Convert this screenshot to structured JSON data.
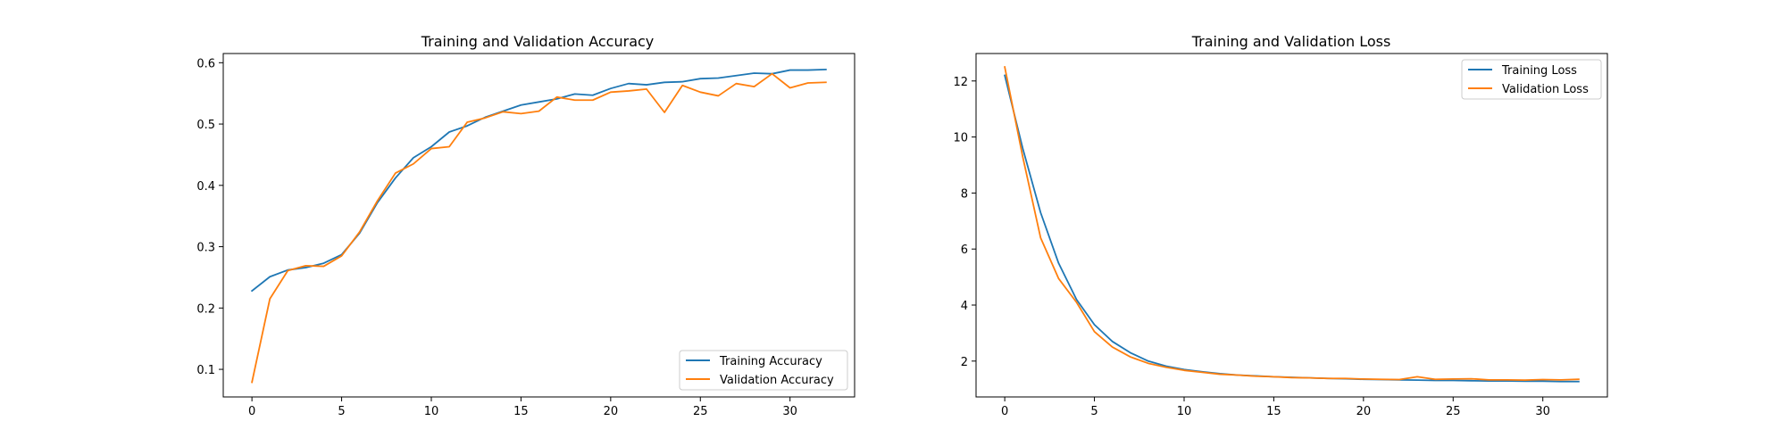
{
  "chart_data": [
    {
      "type": "line",
      "title": "Training and Validation Accuracy",
      "xlabel": "",
      "ylabel": "",
      "xlim": [
        -1.6,
        33.6
      ],
      "ylim": [
        0.055,
        0.615
      ],
      "xticks": [
        0,
        5,
        10,
        15,
        20,
        25,
        30
      ],
      "yticks": [
        0.1,
        0.2,
        0.3,
        0.4,
        0.5,
        0.6
      ],
      "grid": false,
      "legend_position": "lower right",
      "x": [
        0,
        1,
        2,
        3,
        4,
        5,
        6,
        7,
        8,
        9,
        10,
        11,
        12,
        13,
        14,
        15,
        16,
        17,
        18,
        19,
        20,
        21,
        22,
        23,
        24,
        25,
        26,
        27,
        28,
        29,
        30,
        31,
        32
      ],
      "series": [
        {
          "name": "Training Accuracy",
          "color": "#1f77b4",
          "values": [
            0.228,
            0.251,
            0.262,
            0.266,
            0.273,
            0.287,
            0.322,
            0.372,
            0.412,
            0.445,
            0.463,
            0.487,
            0.497,
            0.511,
            0.521,
            0.531,
            0.536,
            0.541,
            0.549,
            0.547,
            0.558,
            0.566,
            0.564,
            0.568,
            0.569,
            0.574,
            0.575,
            0.579,
            0.583,
            0.582,
            0.588,
            0.588,
            0.589
          ]
        },
        {
          "name": "Validation Accuracy",
          "color": "#ff7f0e",
          "values": [
            0.079,
            0.215,
            0.261,
            0.269,
            0.268,
            0.285,
            0.324,
            0.375,
            0.42,
            0.435,
            0.46,
            0.463,
            0.503,
            0.51,
            0.52,
            0.517,
            0.521,
            0.544,
            0.539,
            0.539,
            0.552,
            0.554,
            0.557,
            0.519,
            0.563,
            0.552,
            0.546,
            0.566,
            0.561,
            0.582,
            0.559,
            0.567,
            0.568
          ]
        }
      ]
    },
    {
      "type": "line",
      "title": "Training and Validation Loss",
      "xlabel": "",
      "ylabel": "",
      "xlim": [
        -1.6,
        33.6
      ],
      "ylim": [
        0.72,
        12.98
      ],
      "xticks": [
        0,
        5,
        10,
        15,
        20,
        25,
        30
      ],
      "yticks": [
        2,
        4,
        6,
        8,
        10,
        12
      ],
      "grid": false,
      "legend_position": "upper right",
      "x": [
        0,
        1,
        2,
        3,
        4,
        5,
        6,
        7,
        8,
        9,
        10,
        11,
        12,
        13,
        14,
        15,
        16,
        17,
        18,
        19,
        20,
        21,
        22,
        23,
        24,
        25,
        26,
        27,
        28,
        29,
        30,
        31,
        32
      ],
      "series": [
        {
          "name": "Training Loss",
          "color": "#1f77b4",
          "values": [
            12.2,
            9.6,
            7.3,
            5.5,
            4.2,
            3.3,
            2.7,
            2.3,
            2.0,
            1.82,
            1.7,
            1.62,
            1.55,
            1.5,
            1.47,
            1.44,
            1.42,
            1.4,
            1.38,
            1.37,
            1.35,
            1.34,
            1.33,
            1.32,
            1.31,
            1.31,
            1.3,
            1.29,
            1.29,
            1.28,
            1.28,
            1.27,
            1.27
          ]
        },
        {
          "name": "Validation Loss",
          "color": "#ff7f0e",
          "values": [
            12.5,
            9.3,
            6.4,
            4.95,
            4.1,
            3.05,
            2.5,
            2.15,
            1.92,
            1.78,
            1.67,
            1.6,
            1.53,
            1.5,
            1.46,
            1.44,
            1.41,
            1.4,
            1.38,
            1.38,
            1.36,
            1.35,
            1.34,
            1.44,
            1.35,
            1.36,
            1.37,
            1.33,
            1.33,
            1.32,
            1.34,
            1.33,
            1.35
          ]
        }
      ]
    }
  ]
}
